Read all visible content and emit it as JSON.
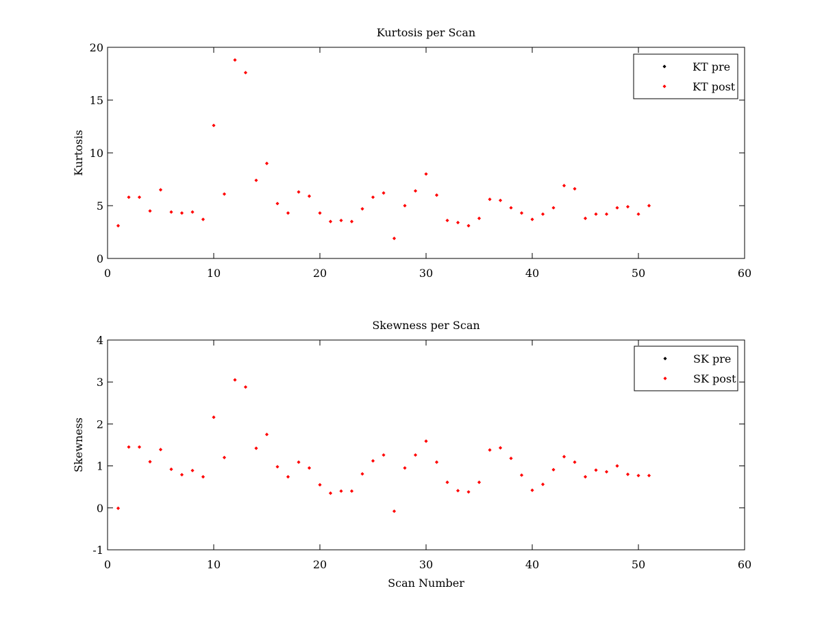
{
  "chart_data": [
    {
      "type": "scatter",
      "title": "Kurtosis per Scan",
      "xlabel": "",
      "ylabel": "Kurtosis",
      "xlim": [
        0,
        60
      ],
      "ylim": [
        0,
        20
      ],
      "xticks": [
        0,
        10,
        20,
        30,
        40,
        50,
        60
      ],
      "yticks": [
        0,
        5,
        10,
        15,
        20
      ],
      "xtick_labels": [
        "0",
        "10",
        "20",
        "30",
        "40",
        "50",
        "60"
      ],
      "ytick_labels": [
        "0",
        "5",
        "10",
        "15",
        "20"
      ],
      "grid": false,
      "legend_position": "top-right",
      "series": [
        {
          "name": "KT pre",
          "color": "#000000",
          "x": [],
          "y": []
        },
        {
          "name": "KT post",
          "color": "#ff0000",
          "x": [
            1,
            2,
            3,
            4,
            5,
            6,
            7,
            8,
            9,
            10,
            11,
            12,
            13,
            14,
            15,
            16,
            17,
            18,
            19,
            20,
            21,
            22,
            23,
            24,
            25,
            26,
            27,
            28,
            29,
            30,
            31,
            32,
            33,
            34,
            35,
            36,
            37,
            38,
            39,
            40,
            41,
            42,
            43,
            44,
            45,
            46,
            47,
            48,
            49,
            50,
            51
          ],
          "y": [
            3.1,
            5.8,
            5.8,
            4.5,
            6.5,
            4.4,
            4.3,
            4.4,
            3.7,
            12.6,
            6.1,
            18.8,
            17.6,
            7.4,
            9.0,
            5.2,
            4.3,
            6.3,
            5.9,
            4.3,
            3.5,
            3.6,
            3.5,
            4.7,
            5.8,
            6.2,
            1.9,
            5.0,
            6.4,
            8.0,
            6.0,
            3.6,
            3.4,
            3.1,
            3.8,
            5.6,
            5.5,
            4.8,
            4.3,
            3.7,
            4.2,
            4.8,
            6.9,
            6.6,
            3.8,
            4.2,
            4.2,
            4.8,
            4.9,
            4.2,
            5.0
          ]
        }
      ]
    },
    {
      "type": "scatter",
      "title": "Skewness per Scan",
      "xlabel": "Scan Number",
      "ylabel": "Skewness",
      "xlim": [
        0,
        60
      ],
      "ylim": [
        -1,
        4
      ],
      "xticks": [
        0,
        10,
        20,
        30,
        40,
        50,
        60
      ],
      "yticks": [
        -1,
        0,
        1,
        2,
        3,
        4
      ],
      "xtick_labels": [
        "0",
        "10",
        "20",
        "30",
        "40",
        "50",
        "60"
      ],
      "ytick_labels": [
        "-1",
        "0",
        "1",
        "2",
        "3",
        "4"
      ],
      "grid": false,
      "legend_position": "top-right",
      "series": [
        {
          "name": "SK pre",
          "color": "#000000",
          "x": [],
          "y": []
        },
        {
          "name": "SK post",
          "color": "#ff0000",
          "x": [
            1,
            2,
            3,
            4,
            5,
            6,
            7,
            8,
            9,
            10,
            11,
            12,
            13,
            14,
            15,
            16,
            17,
            18,
            19,
            20,
            21,
            22,
            23,
            24,
            25,
            26,
            27,
            28,
            29,
            30,
            31,
            32,
            33,
            34,
            35,
            36,
            37,
            38,
            39,
            40,
            41,
            42,
            43,
            44,
            45,
            46,
            47,
            48,
            49,
            50,
            51
          ],
          "y": [
            -0.01,
            1.45,
            1.45,
            1.1,
            1.39,
            0.92,
            0.79,
            0.89,
            0.74,
            2.16,
            1.2,
            3.05,
            2.88,
            1.42,
            1.75,
            0.98,
            0.74,
            1.09,
            0.95,
            0.55,
            0.35,
            0.4,
            0.4,
            0.81,
            1.12,
            1.26,
            -0.08,
            0.95,
            1.26,
            1.59,
            1.09,
            0.61,
            0.41,
            0.38,
            0.61,
            1.38,
            1.43,
            1.18,
            0.78,
            0.42,
            0.56,
            0.91,
            1.22,
            1.09,
            0.74,
            0.9,
            0.86,
            1.0,
            0.8,
            0.77,
            0.77
          ]
        }
      ]
    }
  ]
}
